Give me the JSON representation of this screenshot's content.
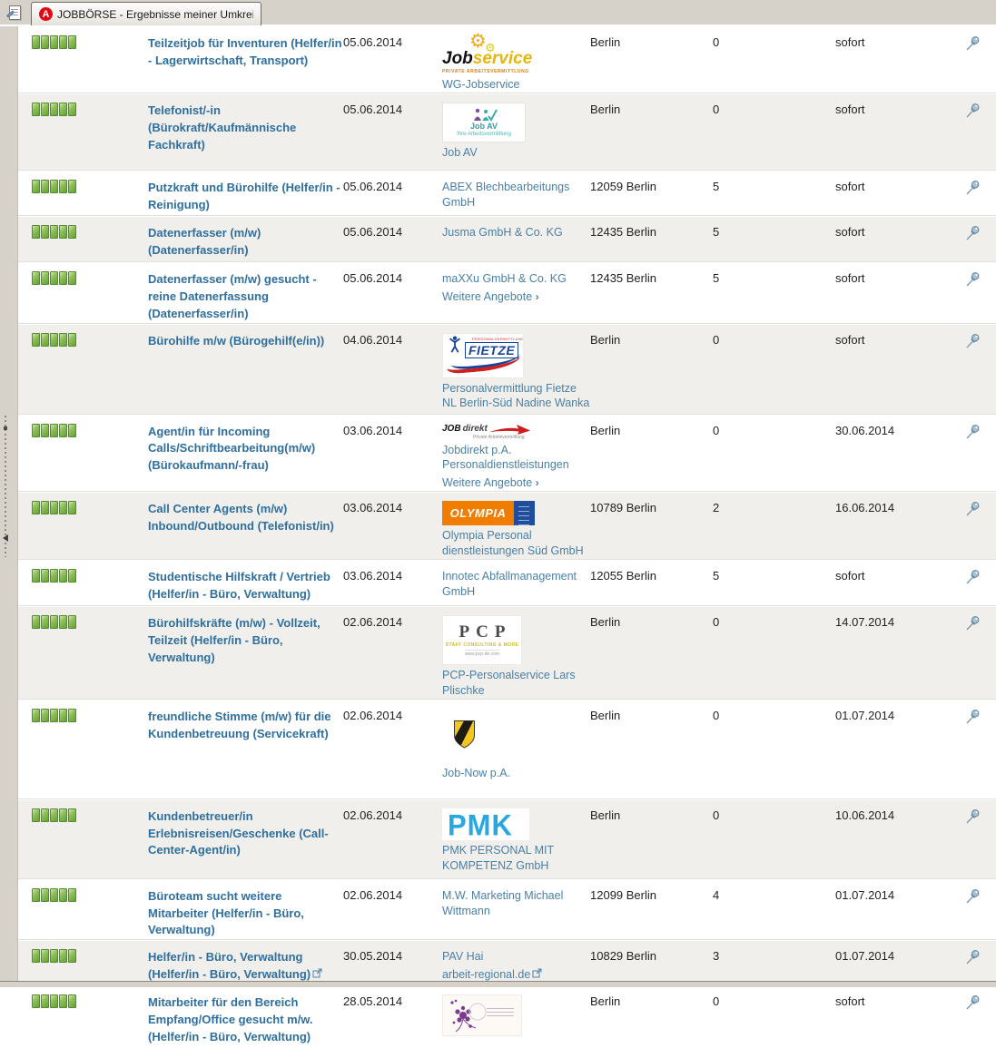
{
  "tab": {
    "title": "JOBBÖRSE - Ergebnisse meiner Umkreissuch..."
  },
  "labels": {
    "more_offers": "Weitere Angebote"
  },
  "colors": {
    "title_link": "#2f6f9f",
    "company_link": "#4a80a8",
    "rating_green": "#63a233",
    "pin_blue": "#8fb0c4",
    "tab_bg": "#d6d2ca",
    "row_alt": "#f0efec",
    "olympia_orange": "#f07c00",
    "olympia_blue": "#1f4f9c",
    "pmk_cyan": "#29a8df",
    "favicon_red": "#e30613"
  },
  "logos": {
    "wg": {
      "word1": "Job",
      "word2": "service",
      "sub": "PRIVATE ARBEITSVERMITTLUNG"
    },
    "jobav": {
      "title": "Job AV",
      "sub": "Ihre Arbeitsvermittlung"
    },
    "fietze": {
      "title": "FIETZE",
      "sub": "PERSONALVERMITTLUNG"
    },
    "jobdirekt": {
      "word1": "JOB",
      "word2": "direkt",
      "sub": "Private Arbeitsvermittlung"
    },
    "olympia": {
      "title": "OLYMPIA"
    },
    "pcp": {
      "title": "PCP",
      "line2": "STAFF CONSULTING & MORE",
      "line3": "www.pcp-de.com"
    },
    "pmk": {
      "title": "PMK"
    }
  },
  "jobs": [
    {
      "rating": 5,
      "title": "Teilzeitjob für Inventuren (Helfer/in - Lagerwirtschaft, Transport)",
      "ext": false,
      "date": "05.06.2014",
      "logo": "wg",
      "company": "WG-Jobservice",
      "company2": "",
      "company2_ext": false,
      "more": false,
      "location": "Berlin",
      "count": "0",
      "begin": "sofort"
    },
    {
      "rating": 5,
      "title": "Telefonist/-in (Bürokraft/Kaufmännische Fachkraft)",
      "ext": false,
      "date": "05.06.2014",
      "logo": "jobav",
      "company": "Job AV",
      "company2": "",
      "company2_ext": false,
      "more": false,
      "location": "Berlin",
      "count": "0",
      "begin": "sofort"
    },
    {
      "rating": 5,
      "title": "Putzkraft und Bürohilfe (Helfer/in - Reinigung)",
      "ext": false,
      "date": "05.06.2014",
      "logo": null,
      "company": "ABEX Blechbearbeitungs GmbH",
      "company2": "",
      "company2_ext": false,
      "more": false,
      "location": "12059 Berlin",
      "count": "5",
      "begin": "sofort"
    },
    {
      "rating": 5,
      "title": "Datenerfasser (m/w) (Datenerfasser/in)",
      "ext": false,
      "date": "05.06.2014",
      "logo": null,
      "company": "Jusma GmbH & Co. KG",
      "company2": "",
      "company2_ext": false,
      "more": false,
      "location": "12435 Berlin",
      "count": "5",
      "begin": "sofort"
    },
    {
      "rating": 5,
      "title": "Datenerfasser (m/w) gesucht - reine Datenerfassung (Datenerfasser/in)",
      "ext": false,
      "date": "05.06.2014",
      "logo": null,
      "company": "maXXu GmbH & Co. KG",
      "company2": "",
      "company2_ext": false,
      "more": true,
      "location": "12435 Berlin",
      "count": "5",
      "begin": "sofort"
    },
    {
      "rating": 5,
      "title": "Bürohilfe m/w (Bürogehilf(e/in))",
      "ext": false,
      "date": "04.06.2014",
      "logo": "fietze",
      "company": "Personalvermittlung Fietze NL Berlin-Süd Nadine Wanka",
      "company2": "",
      "company2_ext": false,
      "more": false,
      "location": "Berlin",
      "count": "0",
      "begin": "sofort"
    },
    {
      "rating": 5,
      "title": "Agent/in für Incoming Calls/Schriftbearbeitung(m/w) (Bürokaufmann/-frau)",
      "ext": false,
      "date": "03.06.2014",
      "logo": "jobdirekt",
      "company": "Jobdirekt p.A. Personaldienstleistungen",
      "company2": "",
      "company2_ext": false,
      "more": true,
      "location": "Berlin",
      "count": "0",
      "begin": "30.06.2014"
    },
    {
      "rating": 5,
      "title": "Call Center Agents (m/w) Inbound/Outbound (Telefonist/in)",
      "ext": false,
      "date": "03.06.2014",
      "logo": "olympia",
      "company": "Olympia Personal dienstleistungen Süd GmbH",
      "company2": "",
      "company2_ext": false,
      "more": false,
      "location": "10789 Berlin",
      "count": "2",
      "begin": "16.06.2014"
    },
    {
      "rating": 5,
      "title": "Studentische Hilfskraft / Vertrieb (Helfer/in - Büro, Verwaltung)",
      "ext": false,
      "date": "03.06.2014",
      "logo": null,
      "company": "Innotec Abfallmanagement GmbH",
      "company2": "",
      "company2_ext": false,
      "more": false,
      "location": "12055 Berlin",
      "count": "5",
      "begin": "sofort"
    },
    {
      "rating": 5,
      "title": "Bürohilfskräfte (m/w) - Vollzeit, Teilzeit (Helfer/in - Büro, Verwaltung)",
      "ext": false,
      "date": "02.06.2014",
      "logo": "pcp",
      "company": "PCP-Personalservice Lars Plischke",
      "company2": "",
      "company2_ext": false,
      "more": false,
      "location": "Berlin",
      "count": "0",
      "begin": "14.07.2014"
    },
    {
      "rating": 5,
      "title": "freundliche Stimme (m/w) für die Kundenbetreuung (Servicekraft)",
      "ext": false,
      "date": "02.06.2014",
      "logo": "jobnow",
      "company": "Job-Now p.A.",
      "company2": "",
      "company2_ext": false,
      "more": false,
      "location": "Berlin",
      "count": "0",
      "begin": "01.07.2014"
    },
    {
      "rating": 5,
      "title": "Kundenbetreuer/in Erlebnisreisen/Geschenke (Call-Center-Agent/in)",
      "ext": false,
      "date": "02.06.2014",
      "logo": "pmk",
      "company": "PMK PERSONAL MIT KOMPETENZ GmbH",
      "company2": "",
      "company2_ext": false,
      "more": false,
      "location": "Berlin",
      "count": "0",
      "begin": "10.06.2014"
    },
    {
      "rating": 5,
      "title": "Büroteam sucht weitere Mitarbeiter (Helfer/in - Büro, Verwaltung)",
      "ext": false,
      "date": "02.06.2014",
      "logo": null,
      "company": "M.W. Marketing Michael Wittmann",
      "company2": "",
      "company2_ext": false,
      "more": false,
      "location": "12099 Berlin",
      "count": "4",
      "begin": "01.07.2014"
    },
    {
      "rating": 5,
      "title": "Helfer/in - Büro, Verwaltung (Helfer/in - Büro, Verwaltung)",
      "ext": true,
      "date": "30.05.2014",
      "logo": null,
      "company": "PAV Hai",
      "company2": "arbeit-regional.de",
      "company2_ext": true,
      "more": false,
      "location": "10829 Berlin",
      "count": "3",
      "begin": "01.07.2014"
    },
    {
      "rating": 5,
      "title": "Mitarbeiter für den Bereich Empfang/Office gesucht m/w. (Helfer/in - Büro, Verwaltung)",
      "ext": false,
      "date": "28.05.2014",
      "logo": "flowers",
      "company": "",
      "company2": "",
      "company2_ext": false,
      "more": false,
      "location": "Berlin",
      "count": "0",
      "begin": "sofort"
    }
  ]
}
